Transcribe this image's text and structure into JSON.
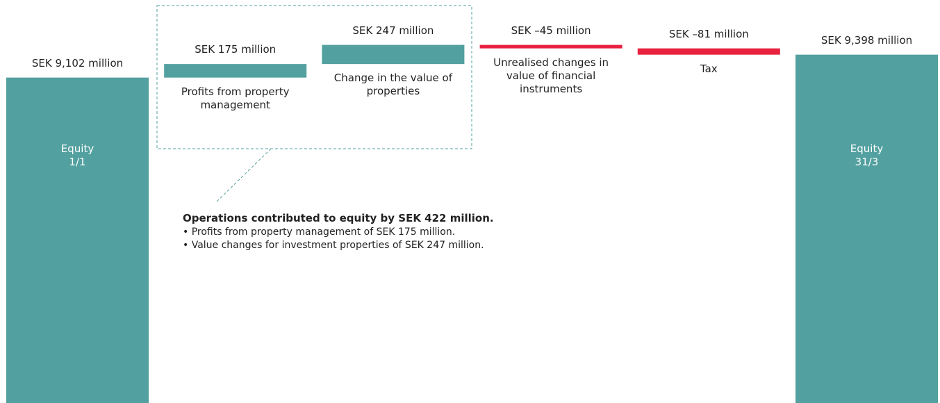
{
  "chart_data": {
    "type": "waterfall",
    "categories": [
      "Equity 1/1",
      "Profits from property management",
      "Change in the value of properties",
      "Unrealised changes in value of financial instruments",
      "Tax",
      "Equity 31/3"
    ],
    "measure": [
      "absolute",
      "relative",
      "relative",
      "relative",
      "relative",
      "absolute"
    ],
    "values": [
      9102,
      175,
      247,
      -45,
      -81,
      9398
    ],
    "value_labels": [
      "SEK 9,102 million",
      "SEK 175 million",
      "SEK 247 million",
      "SEK –45 million",
      "SEK –81 million",
      "SEK 9,398 million"
    ],
    "colors": {
      "total": "#52a09f",
      "increase": "#52a09f",
      "decrease": "#e8213f"
    },
    "ylim": [
      4900,
      9700
    ],
    "annotation": {
      "title": "Operations contributed to equity by SEK 422 million.",
      "items": [
        "Profits from property management of SEK 175 million.",
        "Value changes for investment properties of SEK 247 million."
      ]
    }
  }
}
